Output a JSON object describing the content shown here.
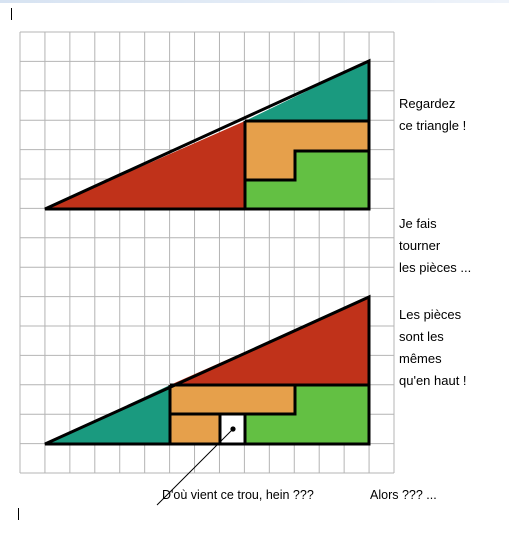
{
  "captions": {
    "regardez": [
      "Regardez",
      "ce triangle !"
    ],
    "tourner": [
      "Je fais",
      "tourner",
      "les pièces ..."
    ],
    "pieces": [
      "Les pièces",
      "sont les",
      "mêmes",
      "qu'en haut !"
    ]
  },
  "question": "D'où vient ce trou, hein  ???",
  "alors": "Alors ??? ...",
  "colors": {
    "red": "#c0321a",
    "teal": "#1a9a7f",
    "orange": "#e6a04b",
    "green": "#63c043",
    "grid": "#b4b4b4",
    "outline": "#000000"
  }
}
